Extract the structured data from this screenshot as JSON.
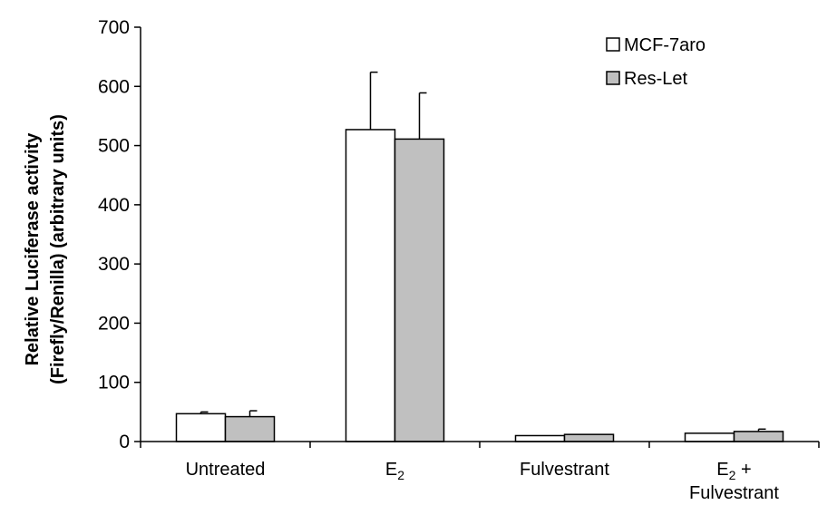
{
  "chart_data": {
    "type": "bar",
    "title": "",
    "xlabel": "",
    "ylabel_lines": [
      "Relative Luciferase activity",
      "(Firefly/Renilla) (arbitrary units)"
    ],
    "ylim": [
      0,
      700
    ],
    "yticks": [
      0,
      100,
      200,
      300,
      400,
      500,
      600,
      700
    ],
    "categories": [
      {
        "lines": [
          {
            "base": "Untreated",
            "sub": "",
            "tail": ""
          }
        ]
      },
      {
        "lines": [
          {
            "base": "E",
            "sub": "2",
            "tail": ""
          }
        ]
      },
      {
        "lines": [
          {
            "base": "Fulvestrant",
            "sub": "",
            "tail": ""
          }
        ]
      },
      {
        "lines": [
          {
            "base": "E",
            "sub": "2",
            "tail": " +"
          },
          {
            "base": "Fulvestrant",
            "sub": "",
            "tail": ""
          }
        ]
      }
    ],
    "series": [
      {
        "name": "MCF-7aro",
        "color": "#ffffff",
        "values": [
          47,
          527,
          10,
          14
        ],
        "errors": [
          3,
          97,
          0,
          0
        ]
      },
      {
        "name": "Res-Let",
        "color": "#c0c0c0",
        "values": [
          42,
          511,
          12,
          17
        ],
        "errors": [
          10,
          78,
          0,
          4
        ]
      }
    ],
    "grid": false,
    "legend_position": "top-right"
  }
}
